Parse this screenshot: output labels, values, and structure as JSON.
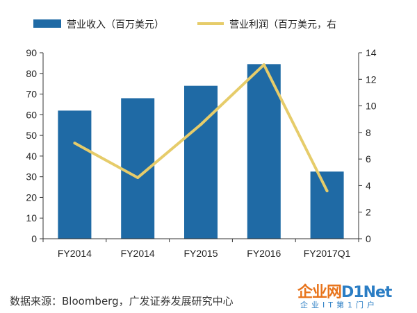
{
  "chart_data": {
    "type": "bar",
    "categories": [
      "FY2014",
      "FY2014",
      "FY2015",
      "FY2016",
      "FY2017Q1"
    ],
    "series": [
      {
        "name": "营业收入（百万美元）",
        "type": "bar",
        "axis": "left",
        "values": [
          62,
          68,
          74,
          84.5,
          32.5
        ],
        "color": "#1f6aa5"
      },
      {
        "name": "营业利润（百万美元，右",
        "type": "line",
        "axis": "right",
        "values": [
          7.2,
          4.6,
          8.6,
          13.1,
          3.6
        ],
        "color": "#e6cc6a"
      }
    ],
    "y_left": {
      "min": 0,
      "max": 90,
      "ticks": [
        "0",
        "10",
        "20",
        "30",
        "40",
        "50",
        "60",
        "70",
        "80",
        "90"
      ]
    },
    "y_right": {
      "min": 0,
      "max": 14,
      "ticks": [
        "0",
        "2",
        "4",
        "6",
        "8",
        "10",
        "12",
        "14"
      ]
    },
    "grid": false,
    "legend_position": "top"
  },
  "source": "数据来源：Bloomberg，广发证券发展研究中心",
  "watermark": {
    "main": "企业网",
    "brand": "D1Net",
    "sub": "企业IT第1门户"
  }
}
